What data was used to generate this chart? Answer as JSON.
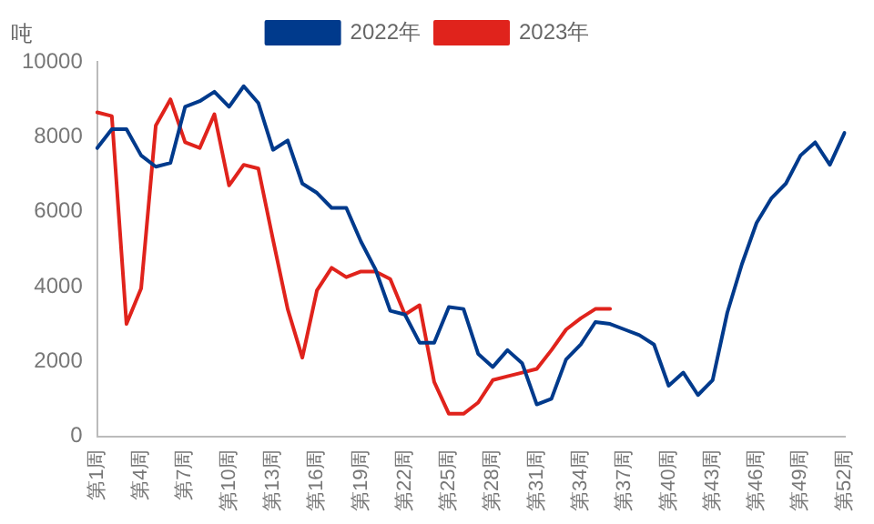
{
  "chart_data": {
    "type": "line",
    "ylabel": "吨",
    "categories": [
      "第1周",
      null,
      null,
      "第4周",
      null,
      null,
      "第7周",
      null,
      null,
      "第10周",
      null,
      null,
      "第13周",
      null,
      null,
      "第16周",
      null,
      null,
      "第19周",
      null,
      null,
      "第22周",
      null,
      null,
      "第25周",
      null,
      null,
      "第28周",
      null,
      null,
      "第31周",
      null,
      null,
      "第34周",
      null,
      null,
      "第37周",
      null,
      null,
      "第40周",
      null,
      null,
      "第43周",
      null,
      null,
      "第46周",
      null,
      null,
      "第49周",
      null,
      null,
      "第52周"
    ],
    "series": [
      {
        "name": "2022年",
        "color": "#003a8c",
        "values": [
          7700,
          8200,
          8200,
          7500,
          7200,
          7300,
          8800,
          8950,
          9200,
          8800,
          9350,
          8900,
          7650,
          7900,
          6750,
          6500,
          6100,
          6100,
          5200,
          4450,
          3350,
          3250,
          2500,
          2500,
          3450,
          3400,
          2200,
          1850,
          2300,
          1950,
          850,
          1000,
          2050,
          2450,
          3050,
          3000,
          2850,
          2700,
          2450,
          1350,
          1700,
          1100,
          1500,
          3300,
          4600,
          5700,
          6350,
          6750,
          7500,
          7850,
          7250,
          8100
        ]
      },
      {
        "name": "2023年",
        "color": "#e0231c",
        "values": [
          8650,
          8550,
          3000,
          3950,
          8300,
          9000,
          7850,
          7700,
          8600,
          6700,
          7250,
          7150,
          5250,
          3400,
          2100,
          3900,
          4500,
          4250,
          4400,
          4400,
          4200,
          3250,
          3500,
          1450,
          600,
          600,
          900,
          1500,
          1600,
          1700,
          1800,
          2300,
          2850,
          3150,
          3400,
          3400,
          null,
          null,
          null,
          null,
          null,
          null,
          null,
          null,
          null,
          null,
          null,
          null,
          null,
          null,
          null,
          null
        ]
      }
    ],
    "ylim": [
      0,
      10000
    ],
    "yticks": [
      0,
      2000,
      4000,
      6000,
      8000,
      10000
    ],
    "grid": false,
    "legend": "top",
    "marker": "none",
    "line_style": "solid"
  }
}
